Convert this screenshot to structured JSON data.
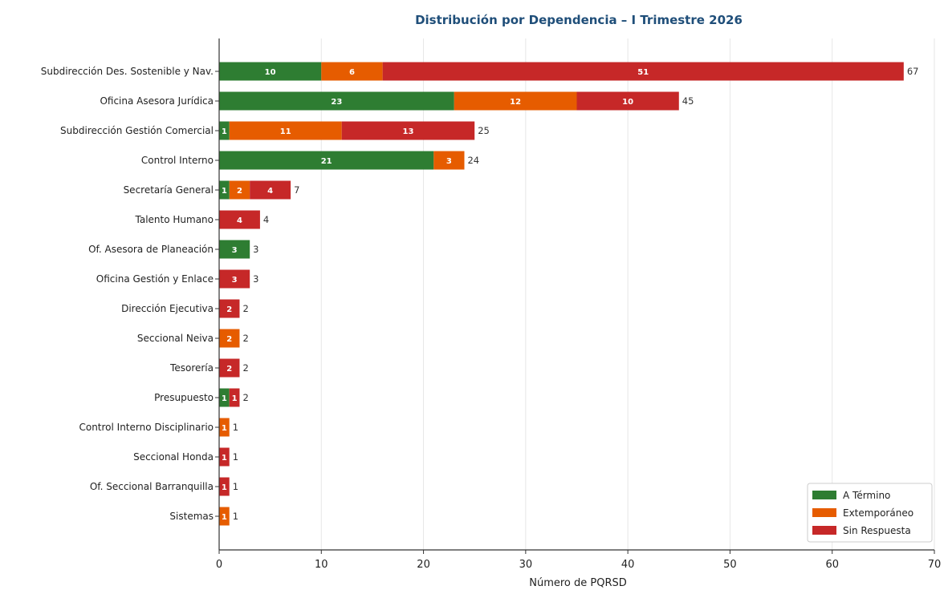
{
  "chart_data": {
    "type": "bar",
    "orientation": "horizontal",
    "stacked": true,
    "title": "Distribución por Dependencia – I Trimestre 2026",
    "xlabel": "Número de PQRSD",
    "ylabel": "",
    "xlim": [
      0,
      70
    ],
    "xticks": [
      0,
      10,
      20,
      30,
      40,
      50,
      60,
      70
    ],
    "grid": "vertical",
    "legend_position": "bottom-right",
    "categories": [
      "Subdirección Des. Sostenible y Nav.",
      "Oficina Asesora Jurídica",
      "Subdirección Gestión Comercial",
      "Control Interno",
      "Secretaría General",
      "Talento Humano",
      "Of. Asesora de Planeación",
      "Oficina Gestión y Enlace",
      "Dirección Ejecutiva",
      "Seccional Neiva",
      "Tesorería",
      "Presupuesto",
      "Control Interno Disciplinario",
      "Seccional Honda",
      "Of. Seccional Barranquilla",
      "Sistemas"
    ],
    "series": [
      {
        "name": "A Término",
        "color": "#2e7d32",
        "values": [
          10,
          23,
          1,
          21,
          1,
          0,
          3,
          0,
          0,
          0,
          0,
          1,
          0,
          0,
          0,
          0
        ]
      },
      {
        "name": "Extemporáneo",
        "color": "#e65c00",
        "values": [
          6,
          12,
          11,
          3,
          2,
          0,
          0,
          0,
          0,
          2,
          0,
          0,
          1,
          0,
          0,
          1
        ]
      },
      {
        "name": "Sin Respuesta",
        "color": "#c62828",
        "values": [
          51,
          10,
          13,
          0,
          4,
          4,
          0,
          3,
          2,
          0,
          2,
          1,
          0,
          1,
          1,
          0
        ]
      }
    ],
    "totals": [
      67,
      45,
      25,
      24,
      7,
      4,
      3,
      3,
      2,
      2,
      2,
      2,
      1,
      1,
      1,
      1
    ]
  }
}
